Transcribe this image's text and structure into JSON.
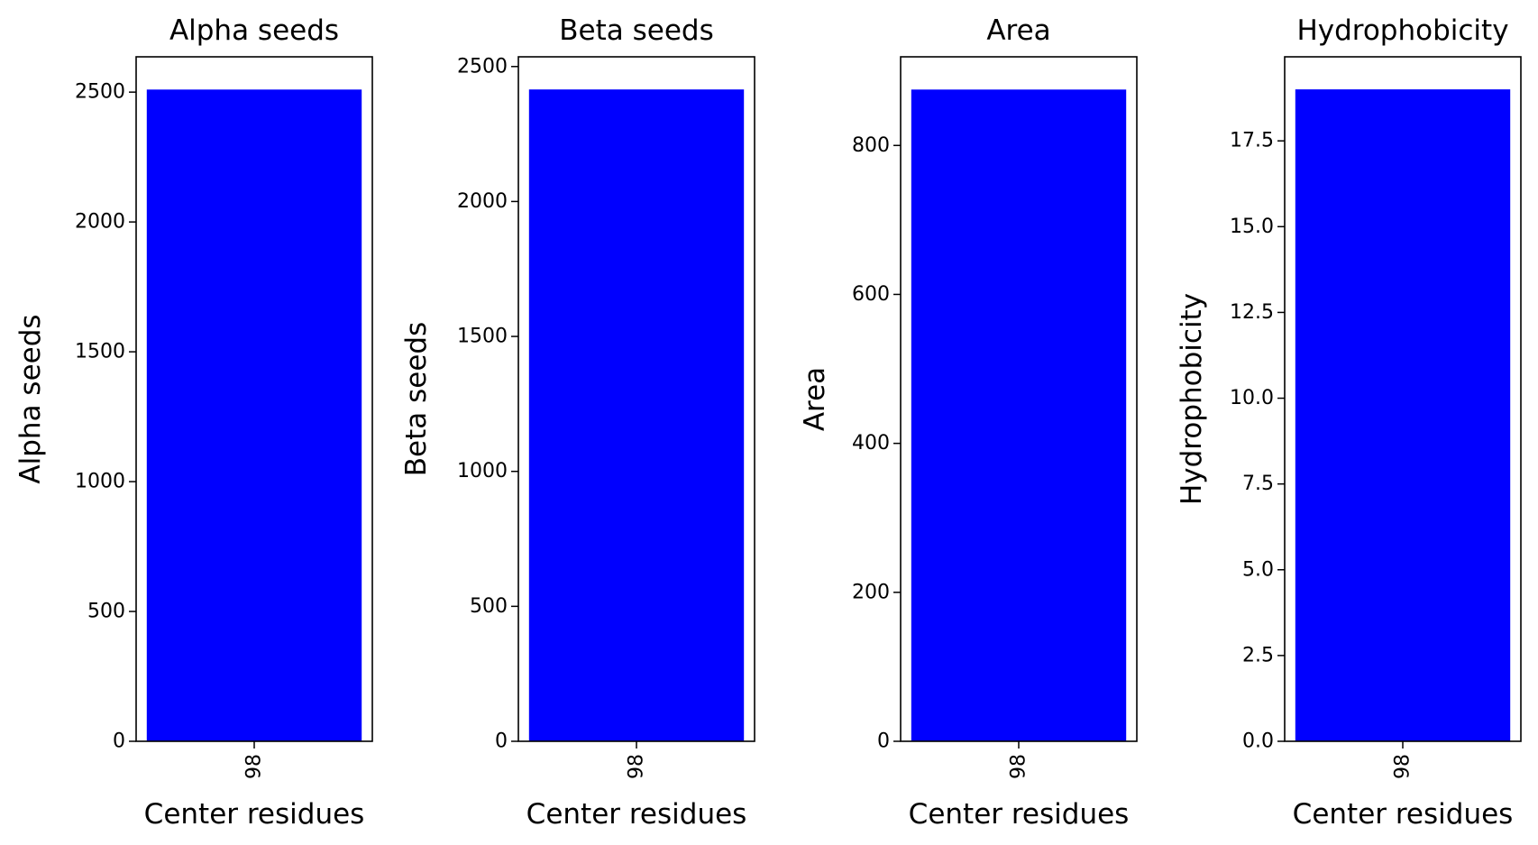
{
  "figure": {
    "background": "#ffffff",
    "bar_color": "#0000ff",
    "axis_color": "#000000"
  },
  "chart_data": [
    {
      "type": "bar",
      "title": "Alpha seeds",
      "xlabel": "Center residues",
      "ylabel": "Alpha seeds",
      "categories": [
        "98"
      ],
      "values": [
        2510
      ],
      "ylim": [
        0,
        2636
      ],
      "yticks": [
        0,
        500,
        1000,
        1500,
        2000,
        2500
      ],
      "ytick_labels": [
        "0",
        "500",
        "1000",
        "1500",
        "2000",
        "2500"
      ],
      "grid": false,
      "legend": "none"
    },
    {
      "type": "bar",
      "title": "Beta seeds",
      "xlabel": "Center residues",
      "ylabel": "Beta seeds",
      "categories": [
        "98"
      ],
      "values": [
        2415
      ],
      "ylim": [
        0,
        2536
      ],
      "yticks": [
        0,
        500,
        1000,
        1500,
        2000,
        2500
      ],
      "ytick_labels": [
        "0",
        "500",
        "1000",
        "1500",
        "2000",
        "2500"
      ],
      "grid": false,
      "legend": "none"
    },
    {
      "type": "bar",
      "title": "Area",
      "xlabel": "Center residues",
      "ylabel": "Area",
      "categories": [
        "98"
      ],
      "values": [
        875
      ],
      "ylim": [
        0,
        919
      ],
      "yticks": [
        0,
        200,
        400,
        600,
        800
      ],
      "ytick_labels": [
        "0",
        "200",
        "400",
        "600",
        "800"
      ],
      "grid": false,
      "legend": "none"
    },
    {
      "type": "bar",
      "title": "Hydrophobicity",
      "xlabel": "Center residues",
      "ylabel": "Hydrophobicity",
      "categories": [
        "98"
      ],
      "values": [
        19.0
      ],
      "ylim": [
        0,
        19.95
      ],
      "yticks": [
        0,
        2.5,
        5,
        7.5,
        10,
        12.5,
        15,
        17.5
      ],
      "ytick_labels": [
        "0.0",
        "2.5",
        "5.0",
        "7.5",
        "10.0",
        "12.5",
        "15.0",
        "17.5"
      ],
      "grid": false,
      "legend": "none"
    }
  ]
}
